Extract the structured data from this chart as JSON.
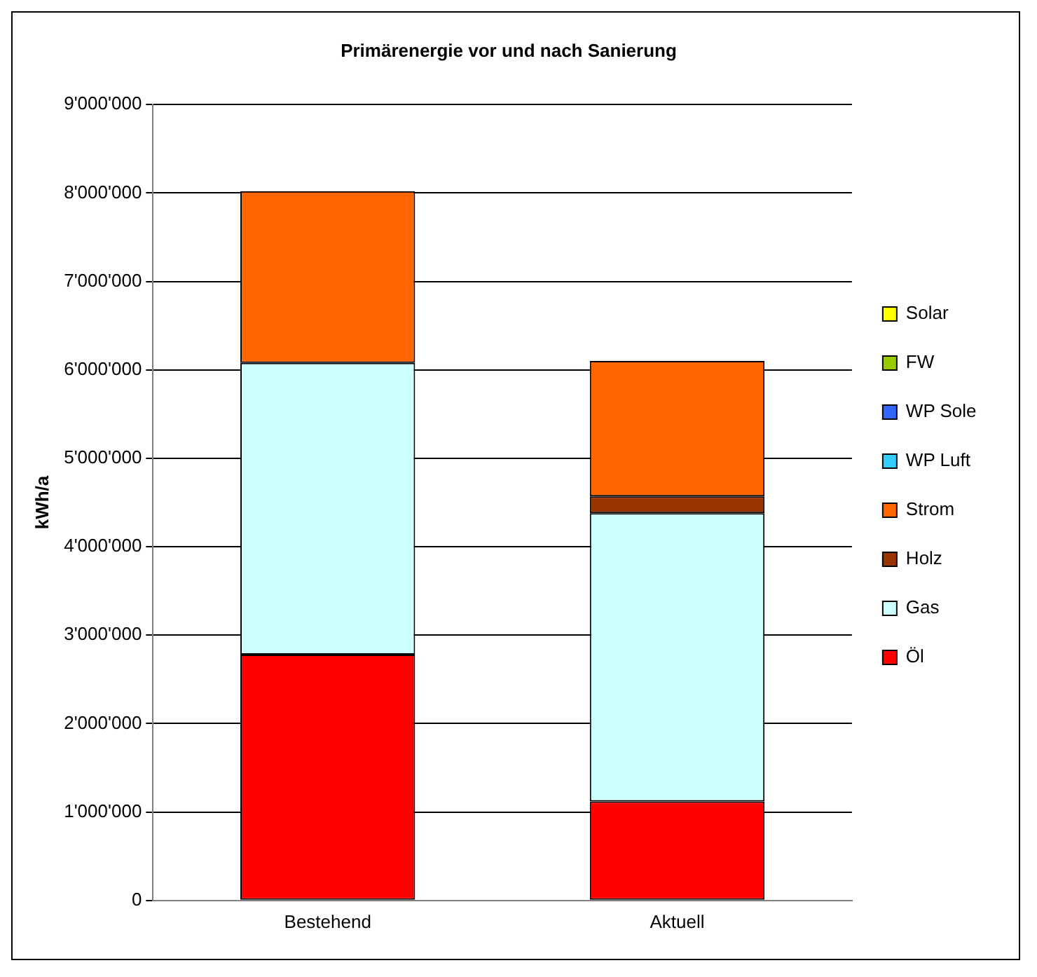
{
  "chart_data": {
    "type": "bar",
    "title": "Primärenergie vor und nach Sanierung",
    "ylabel": "kWh/a",
    "categories": [
      "Bestehend",
      "Aktuell"
    ],
    "stacked": true,
    "series": [
      {
        "name": "Öl",
        "color": "#ff0000",
        "values": [
          2780000,
          1120000
        ]
      },
      {
        "name": "Gas",
        "color": "#ccffff",
        "values": [
          3300000,
          3260000
        ]
      },
      {
        "name": "Holz",
        "color": "#993300",
        "values": [
          0,
          190000
        ]
      },
      {
        "name": "Strom",
        "color": "#ff6600",
        "values": [
          1940000,
          1530000
        ]
      },
      {
        "name": "WP Luft",
        "color": "#33ccff",
        "values": [
          0,
          0
        ]
      },
      {
        "name": "WP Sole",
        "color": "#3366ff",
        "values": [
          0,
          0
        ]
      },
      {
        "name": "FW",
        "color": "#99cc00",
        "values": [
          0,
          0
        ]
      },
      {
        "name": "Solar",
        "color": "#ffff00",
        "values": [
          0,
          0
        ]
      }
    ],
    "ylim": [
      0,
      9000000
    ],
    "yticks": [
      {
        "value": 0,
        "label": "0"
      },
      {
        "value": 1000000,
        "label": "1'000'000"
      },
      {
        "value": 2000000,
        "label": "2'000'000"
      },
      {
        "value": 3000000,
        "label": "3'000'000"
      },
      {
        "value": 4000000,
        "label": "4'000'000"
      },
      {
        "value": 5000000,
        "label": "5'000'000"
      },
      {
        "value": 6000000,
        "label": "6'000'000"
      },
      {
        "value": 7000000,
        "label": "7'000'000"
      },
      {
        "value": 8000000,
        "label": "8'000'000"
      },
      {
        "value": 9000000,
        "label": "9'000'000"
      }
    ],
    "grid": "y",
    "legend": "right"
  }
}
